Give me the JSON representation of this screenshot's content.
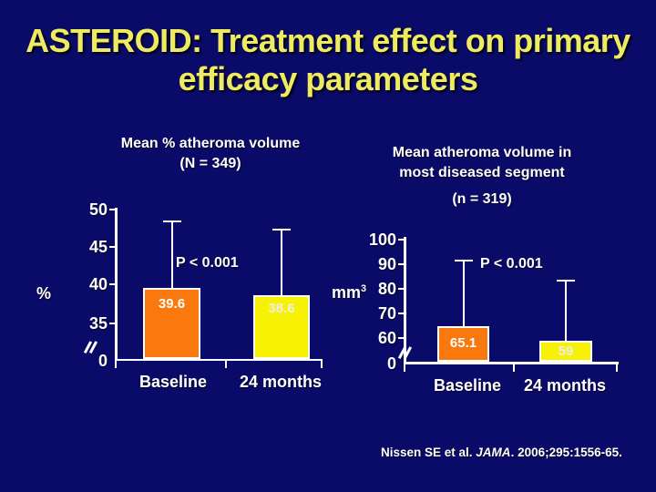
{
  "slide": {
    "title_line1": "ASTEROID: Treatment effect on primary",
    "title_line2": "efficacy parameters",
    "citation_pre": "Nissen SE et al. ",
    "citation_journal": "JAMA",
    "citation_post": ". 2006;295:1556-65."
  },
  "colors": {
    "background": "#0a0a68",
    "title": "#efeb60",
    "text": "#ffffff",
    "axis": "#ffffff",
    "bar_baseline": "#f9790f",
    "bar_24months": "#f7f204"
  },
  "chart_data": [
    {
      "type": "bar",
      "title_line1": "Mean % atheroma volume",
      "title_line2": "(N = 349)",
      "ylabel": "%",
      "categories": [
        "Baseline",
        "24 months"
      ],
      "values": [
        39.6,
        38.6
      ],
      "value_labels": [
        "39.6",
        "38.6"
      ],
      "error_bar_tops": [
        48.5,
        47.5
      ],
      "yticks": [
        "0",
        "35",
        "40",
        "45",
        "50"
      ],
      "ylim": [
        0,
        50
      ],
      "axis_break": true,
      "grid": false,
      "p_value": "P < 0.001"
    },
    {
      "type": "bar",
      "title_line1": "Mean atheroma volume in",
      "title_line2": "most diseased segment",
      "title_line3": "(n = 319)",
      "ylabel": "mm",
      "ylabel_sup": "3",
      "categories": [
        "Baseline",
        "24 months"
      ],
      "values": [
        65.1,
        59
      ],
      "value_labels": [
        "65.1",
        "59"
      ],
      "error_bar_tops": [
        92,
        84
      ],
      "yticks": [
        "0",
        "60",
        "70",
        "80",
        "90",
        "100"
      ],
      "ylim": [
        0,
        100
      ],
      "axis_break": true,
      "grid": false,
      "p_value": "P < 0.001"
    }
  ]
}
